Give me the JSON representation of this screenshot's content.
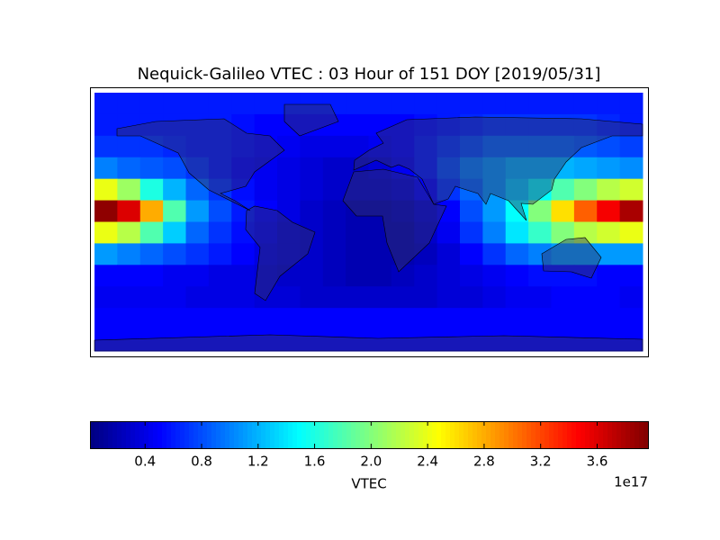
{
  "chart_data": {
    "type": "heatmap",
    "title": "Nequick-Galileo VTEC : 03 Hour of 151 DOY [2019/05/31]",
    "colormap": "jet",
    "values": [
      [
        0.6,
        0.6,
        0.6,
        0.6,
        0.6,
        0.6,
        0.6,
        0.6,
        0.6,
        0.6,
        0.6,
        0.6,
        0.6,
        0.6,
        0.6,
        0.6,
        0.6,
        0.6,
        0.6,
        0.6,
        0.6,
        0.6,
        0.6,
        0.6
      ],
      [
        0.6,
        0.6,
        0.6,
        0.6,
        0.6,
        0.6,
        0.55,
        0.5,
        0.5,
        0.5,
        0.5,
        0.5,
        0.5,
        0.5,
        0.55,
        0.6,
        0.65,
        0.7,
        0.7,
        0.7,
        0.7,
        0.7,
        0.65,
        0.6
      ],
      [
        0.7,
        0.7,
        0.7,
        0.65,
        0.6,
        0.6,
        0.55,
        0.5,
        0.45,
        0.4,
        0.4,
        0.4,
        0.45,
        0.5,
        0.6,
        0.7,
        0.8,
        0.9,
        0.9,
        0.9,
        0.9,
        0.85,
        0.8,
        0.75
      ],
      [
        1.0,
        0.9,
        0.85,
        0.8,
        0.7,
        0.6,
        0.5,
        0.45,
        0.4,
        0.35,
        0.3,
        0.3,
        0.35,
        0.45,
        0.6,
        0.8,
        1.0,
        1.1,
        1.2,
        1.2,
        1.2,
        1.15,
        1.1,
        1.05
      ],
      [
        2.4,
        2.1,
        1.6,
        1.2,
        0.9,
        0.7,
        0.55,
        0.45,
        0.4,
        0.35,
        0.3,
        0.3,
        0.3,
        0.35,
        0.5,
        0.7,
        0.9,
        1.1,
        1.3,
        1.5,
        1.8,
        2.0,
        2.2,
        2.3
      ],
      [
        3.9,
        3.6,
        2.8,
        1.8,
        1.1,
        0.8,
        0.6,
        0.5,
        0.4,
        0.3,
        0.25,
        0.2,
        0.2,
        0.25,
        0.35,
        0.5,
        0.8,
        1.1,
        1.5,
        2.0,
        2.6,
        3.1,
        3.5,
        3.8
      ],
      [
        2.4,
        2.2,
        1.8,
        1.3,
        0.9,
        0.7,
        0.55,
        0.45,
        0.35,
        0.3,
        0.25,
        0.2,
        0.2,
        0.2,
        0.3,
        0.45,
        0.7,
        1.0,
        1.4,
        1.7,
        2.0,
        2.2,
        2.3,
        2.4
      ],
      [
        1.1,
        1.0,
        0.9,
        0.8,
        0.7,
        0.6,
        0.5,
        0.4,
        0.35,
        0.3,
        0.25,
        0.2,
        0.2,
        0.2,
        0.25,
        0.35,
        0.5,
        0.7,
        0.9,
        1.0,
        1.1,
        1.1,
        1.1,
        1.1
      ],
      [
        0.5,
        0.5,
        0.5,
        0.45,
        0.45,
        0.4,
        0.4,
        0.35,
        0.3,
        0.3,
        0.25,
        0.2,
        0.2,
        0.25,
        0.3,
        0.35,
        0.4,
        0.45,
        0.5,
        0.55,
        0.55,
        0.55,
        0.5,
        0.5
      ],
      [
        0.45,
        0.45,
        0.45,
        0.45,
        0.4,
        0.4,
        0.4,
        0.35,
        0.35,
        0.3,
        0.3,
        0.3,
        0.3,
        0.3,
        0.3,
        0.35,
        0.35,
        0.4,
        0.45,
        0.45,
        0.5,
        0.5,
        0.5,
        0.45
      ],
      [
        0.5,
        0.5,
        0.5,
        0.5,
        0.5,
        0.5,
        0.5,
        0.5,
        0.5,
        0.5,
        0.5,
        0.5,
        0.5,
        0.5,
        0.5,
        0.5,
        0.5,
        0.5,
        0.5,
        0.5,
        0.5,
        0.5,
        0.5,
        0.5
      ],
      [
        0.5,
        0.5,
        0.5,
        0.5,
        0.5,
        0.5,
        0.5,
        0.5,
        0.5,
        0.5,
        0.5,
        0.5,
        0.5,
        0.5,
        0.5,
        0.5,
        0.5,
        0.5,
        0.5,
        0.5,
        0.5,
        0.5,
        0.5,
        0.5
      ]
    ],
    "colorbar": {
      "label": "VTEC",
      "offset_label": "1e17",
      "lim": [
        0.01,
        3.96
      ],
      "ticks": [
        0.4,
        0.8,
        1.2,
        1.6,
        {
          "value": 2,
          "label": "2.0"
        },
        2.4,
        2.8,
        3.2,
        3.6
      ]
    }
  }
}
